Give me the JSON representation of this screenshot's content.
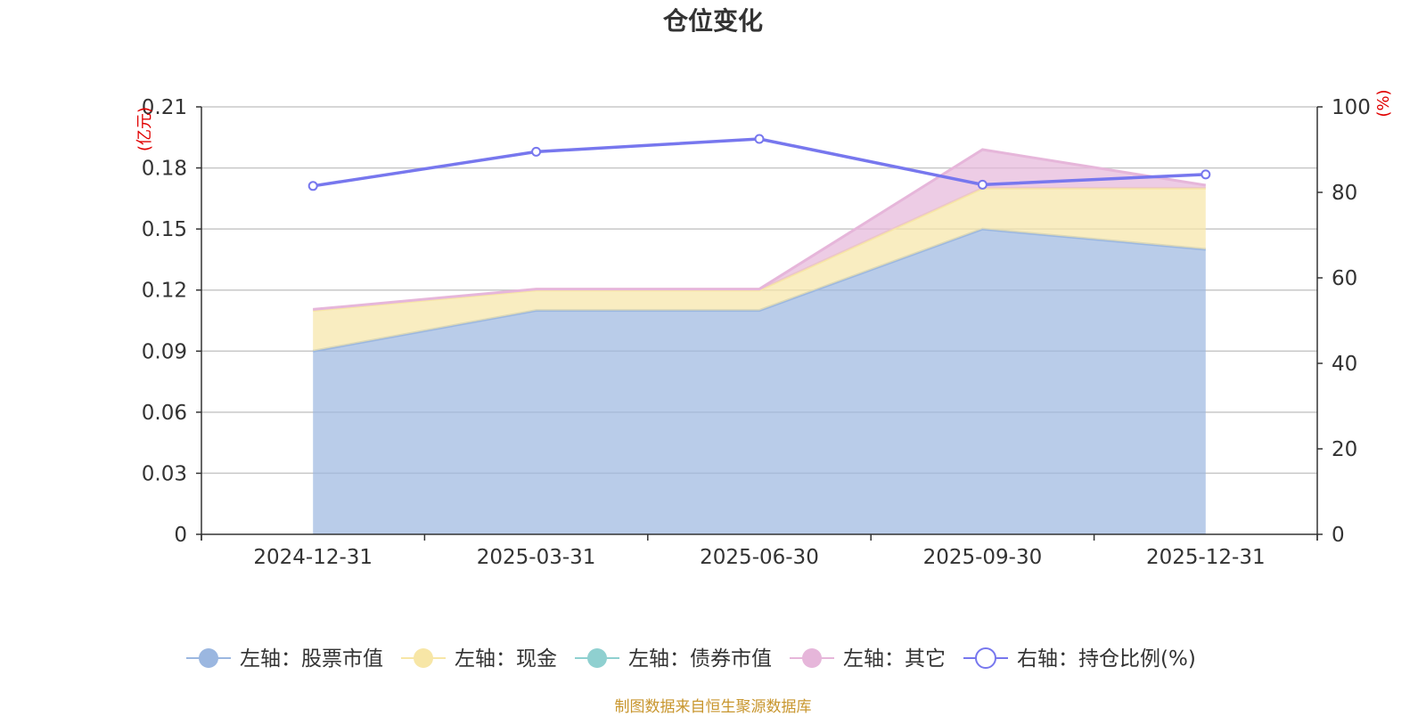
{
  "chart_data": {
    "type": "area",
    "title": "仓位变化",
    "categories": [
      "2024-12-31",
      "2025-03-31",
      "2025-06-30",
      "2025-09-30",
      "2025-12-31"
    ],
    "left_axis": {
      "unit": "(亿元)",
      "ylim": [
        0,
        0.21
      ],
      "ticks": [
        "0",
        "0.03",
        "0.06",
        "0.09",
        "0.12",
        "0.15",
        "0.18",
        "0.21"
      ],
      "tick_values": [
        0,
        0.03,
        0.06,
        0.09,
        0.12,
        0.15,
        0.18,
        0.21
      ]
    },
    "right_axis": {
      "unit": "(%)",
      "ylim": [
        0,
        100
      ],
      "ticks": [
        "0",
        "20",
        "40",
        "60",
        "80",
        "100"
      ],
      "tick_values": [
        0,
        20,
        40,
        60,
        80,
        100
      ]
    },
    "series": [
      {
        "name": "左轴：股票市值",
        "axis": "left",
        "kind": "stacked-area",
        "color": "#9bb7e0",
        "values": [
          0.09,
          0.11,
          0.11,
          0.15,
          0.14
        ]
      },
      {
        "name": "左轴：现金",
        "axis": "left",
        "kind": "stacked-area",
        "color": "#f7e6a6",
        "values": [
          0.02,
          0.01,
          0.01,
          0.02,
          0.03
        ]
      },
      {
        "name": "左轴：债券市值",
        "axis": "left",
        "kind": "stacked-area",
        "color": "#8fd0d0",
        "values": [
          0,
          0,
          0,
          0,
          0
        ]
      },
      {
        "name": "左轴：其它",
        "axis": "left",
        "kind": "stacked-area",
        "color": "#e6b6da",
        "values": [
          0.0005,
          0.0005,
          0.0005,
          0.019,
          0.0015
        ]
      },
      {
        "name": "右轴：持仓比例(%)",
        "axis": "right",
        "kind": "line",
        "color": "#7777ee",
        "values": [
          81.5,
          89.5,
          92.5,
          81.8,
          84.2
        ]
      }
    ]
  },
  "footer": "制图数据来自恒生聚源数据库"
}
